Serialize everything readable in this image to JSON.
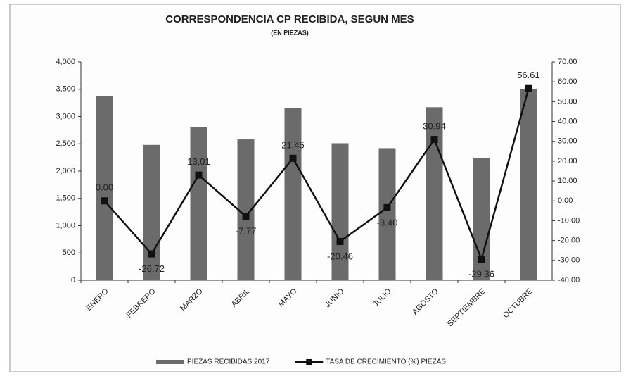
{
  "chart_data": {
    "type": "bar",
    "title": "CORRESPONDENCIA CP RECIBIDA, SEGUN MES",
    "subtitle": "(EN PIEZAS)",
    "categories": [
      "ENERO",
      "FEBRERO",
      "MARZO",
      "ABRIL",
      "MAYO",
      "JUNIO",
      "JULIO",
      "AGOSTO",
      "SEPTIEMBRE",
      "OCTUBRE"
    ],
    "series": [
      {
        "name": "PIEZAS RECIBIDAS 2017",
        "type": "bar",
        "color": "#6b6b6b",
        "values": [
          3380,
          2480,
          2800,
          2580,
          3150,
          2510,
          2420,
          3170,
          2240,
          3510
        ]
      },
      {
        "name": "TASA DE CRECIMIENTO  (%) PIEZAS",
        "type": "line",
        "axis": "y2",
        "color": "#111111",
        "values": [
          0,
          -26.72,
          13.01,
          -7.77,
          21.45,
          -20.46,
          -3.4,
          30.94,
          -29.36,
          56.61
        ],
        "value_labels": [
          "0.00",
          "-26.72",
          "13.01",
          "-7.77",
          "21.45",
          "-20.46",
          "-3.40",
          "30.94",
          "-29.36",
          "56.61"
        ]
      }
    ],
    "ylim": [
      0,
      4000
    ],
    "yticks": [
      0,
      500,
      {
        "value": 1000,
        "label": "1,000"
      },
      {
        "value": 1500,
        "label": "1,500"
      },
      {
        "value": 2000,
        "label": "2,000"
      },
      {
        "value": 2500,
        "label": "2,500"
      },
      {
        "value": 3000,
        "label": "3,000"
      },
      {
        "value": 3500,
        "label": "3,500"
      },
      {
        "value": 4000,
        "label": "4,000"
      }
    ],
    "y2lim": [
      -40,
      70
    ],
    "y2ticks": [
      {
        "value": -40,
        "label": "-40.00"
      },
      {
        "value": -30,
        "label": "-30.00"
      },
      {
        "value": -20,
        "label": "-20.00"
      },
      {
        "value": -10,
        "label": "-10.00"
      },
      {
        "value": 0,
        "label": "0.00"
      },
      {
        "value": 10,
        "label": "10.00"
      },
      {
        "value": 20,
        "label": "20.00"
      },
      {
        "value": 30,
        "label": "30.00"
      },
      {
        "value": 40,
        "label": "40.00"
      },
      {
        "value": 50,
        "label": "50.00"
      },
      {
        "value": 60,
        "label": "60.00"
      },
      {
        "value": 70,
        "label": "70.00"
      }
    ],
    "legend": "bottom"
  }
}
